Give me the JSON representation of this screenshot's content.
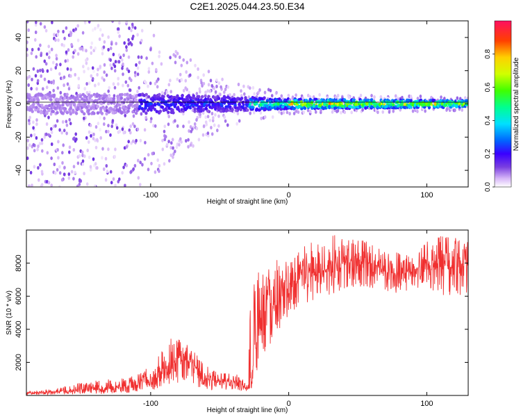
{
  "chart_data": [
    {
      "type": "heatmap",
      "title": "C2E1.2025.044.23.50.E34",
      "xlabel": "Height of straight line (km)",
      "ylabel": "Frequency (Hz)",
      "xlim": [
        -190,
        130
      ],
      "ylim": [
        -50,
        50
      ],
      "x_ticks": [
        -100,
        0,
        100
      ],
      "y_ticks": [
        -40,
        -20,
        0,
        20,
        40
      ],
      "colorbar": {
        "label": "Normalized spectral amplitude",
        "range": [
          0,
          1
        ],
        "ticks": [
          0.0,
          0.2,
          0.4,
          0.6,
          0.8
        ],
        "colormap": [
          "#ffffff",
          "#d8b8f8",
          "#7a3fe0",
          "#3a00ff",
          "#0066ff",
          "#00e0ff",
          "#00ff90",
          "#40ff00",
          "#d0ff00",
          "#ffd000",
          "#ff4000",
          "#ff1060"
        ]
      },
      "features": {
        "band_center_hz": 0,
        "band_halfwidth_hz": [
          {
            "x": -110,
            "hz": 6
          },
          {
            "x": -30,
            "hz": 4
          },
          {
            "x": 0,
            "hz": 3
          },
          {
            "x": 130,
            "hz": 2
          }
        ],
        "scatter_extent_hz": [
          {
            "x": -190,
            "hz": 50
          },
          {
            "x": -110,
            "hz": 50
          },
          {
            "x": -50,
            "hz": 15
          },
          {
            "x": 0,
            "hz": 6
          },
          {
            "x": 130,
            "hz": 4
          }
        ]
      }
    },
    {
      "type": "line",
      "xlabel": "Height of straight line (km)",
      "ylabel": "SNR (10 * v/v)",
      "xlim": [
        -190,
        130
      ],
      "ylim": [
        0,
        10000
      ],
      "x_ticks": [
        -100,
        0,
        100
      ],
      "y_ticks": [
        2000,
        4000,
        6000,
        8000
      ],
      "line_color": "#f03030",
      "series": [
        {
          "x": [
            -190,
            -170,
            -150,
            -130,
            -110,
            -104,
            -100,
            -90,
            -80,
            -70,
            -60,
            -50,
            -40,
            -30,
            -27,
            -25,
            -22,
            -20,
            -15,
            -10,
            -5,
            0,
            10,
            20,
            30,
            40,
            50,
            60,
            70,
            80,
            90,
            100,
            110,
            120,
            130
          ],
          "values": [
            150,
            200,
            300,
            400,
            600,
            1200,
            700,
            1500,
            2200,
            2000,
            1000,
            900,
            800,
            500,
            600,
            2500,
            3500,
            4500,
            5000,
            5500,
            6000,
            6500,
            7000,
            7300,
            7800,
            8000,
            8100,
            8000,
            7600,
            7300,
            7500,
            7700,
            7800,
            7900,
            8000
          ],
          "envelope_max": [
            250,
            400,
            800,
            1000,
            1200,
            1700,
            1400,
            3300,
            3700,
            2800,
            1800,
            1400,
            1400,
            1200,
            8000,
            7000,
            8500,
            8700,
            7800,
            8200,
            8400,
            8000,
            9000,
            9400,
            9800,
            9500,
            9700,
            9200,
            8800,
            8700,
            8600,
            9400,
            9700,
            9600,
            9500
          ],
          "envelope_min": [
            50,
            50,
            50,
            100,
            200,
            400,
            300,
            500,
            700,
            600,
            300,
            300,
            300,
            200,
            200,
            600,
            1500,
            2200,
            2600,
            3200,
            3800,
            4500,
            5000,
            5600,
            6000,
            6300,
            6400,
            6500,
            6300,
            6100,
            6300,
            6600,
            6000,
            5700,
            6200
          ]
        }
      ]
    }
  ]
}
